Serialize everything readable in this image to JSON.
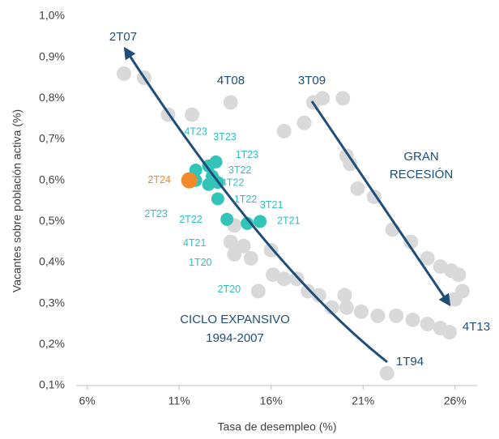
{
  "chart_data": {
    "type": "scatter",
    "xlabel": "Tasa de desempleo (%)",
    "ylabel": "Vacantes sobre población activa (%)",
    "xlim": [
      5.4,
      27.2
    ],
    "ylim": [
      0.1,
      1.0
    ],
    "xticks": [
      {
        "value": 6,
        "label": "6%"
      },
      {
        "value": 11,
        "label": "11%"
      },
      {
        "value": 16,
        "label": "16%"
      },
      {
        "value": 21,
        "label": "21%"
      },
      {
        "value": 26,
        "label": "26%"
      }
    ],
    "yticks": [
      {
        "value": 0.1,
        "label": "0,1%"
      },
      {
        "value": 0.2,
        "label": "0,2%"
      },
      {
        "value": 0.3,
        "label": "0,3%"
      },
      {
        "value": 0.4,
        "label": "0,4%"
      },
      {
        "value": 0.5,
        "label": "0,5%"
      },
      {
        "value": 0.6,
        "label": "0,6%"
      },
      {
        "value": 0.7,
        "label": "0,7%"
      },
      {
        "value": 0.8,
        "label": "0,8%"
      },
      {
        "value": 0.9,
        "label": "0,9%"
      },
      {
        "value": 1.0,
        "label": "1,0%"
      }
    ],
    "label_color": "#2fbfbf",
    "series": [
      {
        "color": "#d9d9d9",
        "x": [
          14.0,
          15.3,
          8.0,
          9.1,
          10.4,
          11.7,
          13.8,
          16.7,
          17.8,
          18.3,
          18.8,
          19.9,
          20.1,
          20.3,
          20.7,
          21.6,
          22.6,
          23.6,
          24.5,
          25.2,
          25.8,
          26.2,
          26.4,
          26.0,
          25.7,
          25.2,
          24.5,
          23.7,
          22.8,
          21.8,
          20.9,
          20.1,
          20.0,
          19.3,
          18.6,
          18.0,
          17.4,
          16.7,
          16.1,
          14.9,
          14.5,
          13.8,
          16.0,
          22.3,
          14.0
        ],
        "y": [
          0.42,
          0.33,
          0.86,
          0.85,
          0.76,
          0.76,
          0.79,
          0.72,
          0.74,
          0.79,
          0.8,
          0.8,
          0.66,
          0.64,
          0.58,
          0.56,
          0.48,
          0.45,
          0.41,
          0.39,
          0.38,
          0.37,
          0.33,
          0.31,
          0.23,
          0.24,
          0.25,
          0.26,
          0.27,
          0.27,
          0.28,
          0.29,
          0.32,
          0.29,
          0.32,
          0.33,
          0.36,
          0.36,
          0.37,
          0.41,
          0.44,
          0.45,
          0.43,
          0.13,
          0.49
        ],
        "labels": [
          "1T20",
          "2T20",
          null,
          null,
          null,
          null,
          null,
          null,
          null,
          null,
          null,
          null,
          null,
          null,
          null,
          null,
          null,
          null,
          null,
          null,
          null,
          null,
          null,
          null,
          null,
          null,
          null,
          null,
          null,
          null,
          null,
          null,
          null,
          null,
          null,
          null,
          null,
          null,
          null,
          null,
          null,
          null,
          null,
          null,
          null
        ]
      },
      {
        "color": "#33c4b9",
        "x": [
          11.9,
          12.6,
          13.0,
          12.8,
          13.1,
          11.9,
          12.6,
          13.1,
          13.6,
          14.7,
          15.4
        ],
        "y": [
          0.625,
          0.635,
          0.645,
          0.61,
          0.595,
          0.6,
          0.59,
          0.555,
          0.505,
          0.495,
          0.5
        ],
        "labels": [
          "4T23",
          "3T23",
          "1T23",
          "3T22",
          "4T22",
          "2T23",
          "2T22",
          "1T22",
          "4T21",
          "3T21",
          "2T21"
        ]
      },
      {
        "color": "#f08a2c",
        "x": [
          11.55
        ],
        "y": [
          0.6
        ],
        "labels": [
          "2T24"
        ]
      }
    ],
    "annotations": [
      "2T07",
      "4T08",
      "3T09",
      "GRAN",
      "RECESIÓN",
      "CICLO EXPANSIVO",
      "1994-2007",
      "4T13",
      "1T94"
    ]
  }
}
